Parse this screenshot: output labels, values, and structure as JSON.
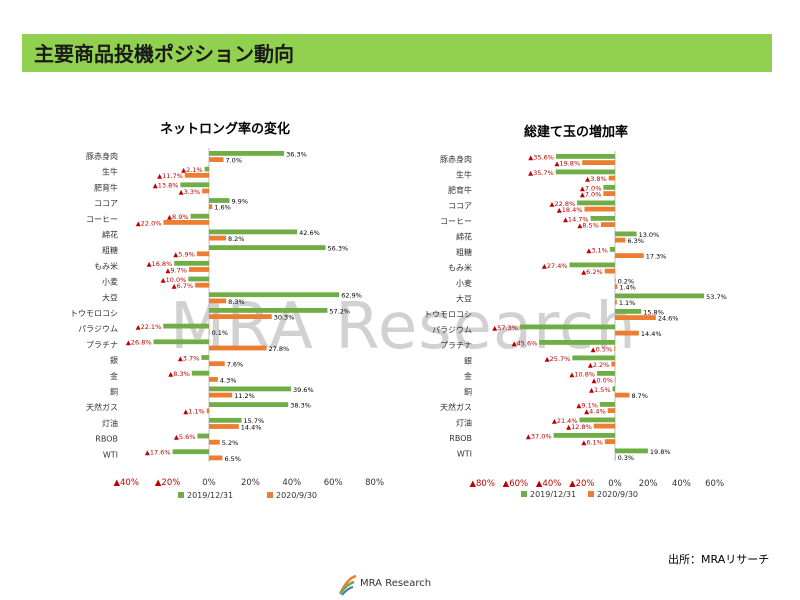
{
  "page": {
    "title": "主要商品投機ポジション動向",
    "source": "出所：MRAリサーチ",
    "watermark": "MRA Research",
    "logo_text": "MRA Research"
  },
  "colors": {
    "series_2019": "#70ad47",
    "series_2020": "#ed7d31",
    "negative_label": "#c00000",
    "title_bar": "#92d050"
  },
  "chart_data": [
    {
      "type": "bar",
      "orientation": "horizontal",
      "title": "ネットロング率の変化",
      "categories": [
        "豚赤身肉",
        "生牛",
        "肥育牛",
        "ココア",
        "コーヒー",
        "綿花",
        "粗糖",
        "もみ米",
        "小麦",
        "大豆",
        "トウモロコシ",
        "パラジウム",
        "プラチナ",
        "銀",
        "金",
        "銅",
        "天然ガス",
        "灯油",
        "RBOB",
        "WTI"
      ],
      "series": [
        {
          "name": "2019/12/31",
          "values": [
            36.3,
            -2.1,
            -13.8,
            9.9,
            -8.9,
            42.6,
            56.3,
            -16.8,
            -10.0,
            62.9,
            57.2,
            -22.1,
            -26.8,
            -3.7,
            -8.3,
            39.6,
            38.3,
            15.7,
            -5.6,
            -17.6
          ],
          "labels": [
            "36.3%",
            "▲2.1%",
            "▲13.8%",
            "9.9%",
            "▲8.9%",
            "42.6%",
            "56.3%",
            "▲16.8%",
            "▲10.0%",
            "62.9%",
            "57.2%",
            "▲22.1%",
            "▲26.8%",
            "▲3.7%",
            "▲8.3%",
            "39.6%",
            "38.3%",
            "15.7%",
            "▲5.6%",
            "▲17.6%"
          ]
        },
        {
          "name": "2020/9/30",
          "values": [
            7.0,
            -11.7,
            -3.3,
            1.6,
            -22.0,
            8.2,
            -5.9,
            -9.7,
            -6.7,
            8.3,
            30.3,
            0.1,
            27.8,
            7.6,
            4.3,
            11.2,
            -1.1,
            14.4,
            5.2,
            6.5
          ],
          "labels": [
            "7.0%",
            "▲11.7%",
            "▲3.3%",
            "1.6%",
            "▲22.0%",
            "8.2%",
            "▲5.9%",
            "▲9.7%",
            "▲6.7%",
            "8.3%",
            "30.3%",
            "0.1%",
            "27.8%",
            "7.6%",
            "4.3%",
            "11.2%",
            "▲1.1%",
            "14.4%",
            "5.2%",
            "6.5%"
          ]
        }
      ],
      "xlim": [
        -40,
        80
      ],
      "xticks": [
        -40,
        -20,
        0,
        20,
        40,
        60,
        80
      ],
      "xtick_labels": [
        "▲40%",
        "▲20%",
        "0%",
        "20%",
        "40%",
        "60%",
        "80%"
      ],
      "legend_position": "bottom"
    },
    {
      "type": "bar",
      "orientation": "horizontal",
      "title": "総建て玉の増加率",
      "categories": [
        "豚赤身肉",
        "生牛",
        "肥育牛",
        "ココア",
        "コーヒー",
        "綿花",
        "粗糖",
        "もみ米",
        "小麦",
        "大豆",
        "トウモロコシ",
        "パラジウム",
        "プラチナ",
        "銀",
        "金",
        "銅",
        "天然ガス",
        "灯油",
        "RBOB",
        "WTI"
      ],
      "series": [
        {
          "name": "2019/12/31",
          "values": [
            -35.6,
            -35.7,
            -7.0,
            -22.8,
            -14.7,
            13.0,
            -3.1,
            -27.4,
            0.2,
            53.7,
            15.8,
            -57.3,
            -45.6,
            -25.7,
            -10.8,
            -1.5,
            -9.1,
            -21.4,
            -37.0,
            19.8
          ],
          "labels": [
            "▲35.6%",
            "▲35.7%",
            "▲7.0%",
            "▲22.8%",
            "▲14.7%",
            "13.0%",
            "▲3.1%",
            "▲27.4%",
            "0.2%",
            "53.7%",
            "15.8%",
            "▲57.3%",
            "▲45.6%",
            "▲25.7%",
            "▲10.8%",
            "▲1.5%",
            "▲9.1%",
            "▲21.4%",
            "▲37.0%",
            "19.8%"
          ]
        },
        {
          "name": "2020/9/30",
          "values": [
            -19.8,
            -3.8,
            -7.0,
            -18.4,
            -8.5,
            6.3,
            17.3,
            -6.2,
            1.4,
            1.1,
            24.6,
            14.4,
            -0.5,
            -2.2,
            -0.0,
            8.7,
            -4.4,
            -12.8,
            -6.1,
            0.3
          ],
          "labels": [
            "▲19.8%",
            "▲3.8%",
            "▲7.0%",
            "▲18.4%",
            "▲8.5%",
            "6.3%",
            "17.3%",
            "▲6.2%",
            "1.4%",
            "1.1%",
            "24.6%",
            "14.4%",
            "▲0.5%",
            "▲2.2%",
            "▲0.0%",
            "8.7%",
            "▲4.4%",
            "▲12.8%",
            "▲6.1%",
            "0.3%"
          ]
        }
      ],
      "xlim": [
        -80,
        60
      ],
      "xticks": [
        -80,
        -60,
        -40,
        -20,
        0,
        20,
        40,
        60
      ],
      "xtick_labels": [
        "▲80%",
        "▲60%",
        "▲40%",
        "▲20%",
        "0%",
        "20%",
        "40%",
        "60%"
      ],
      "legend_position": "bottom"
    }
  ]
}
